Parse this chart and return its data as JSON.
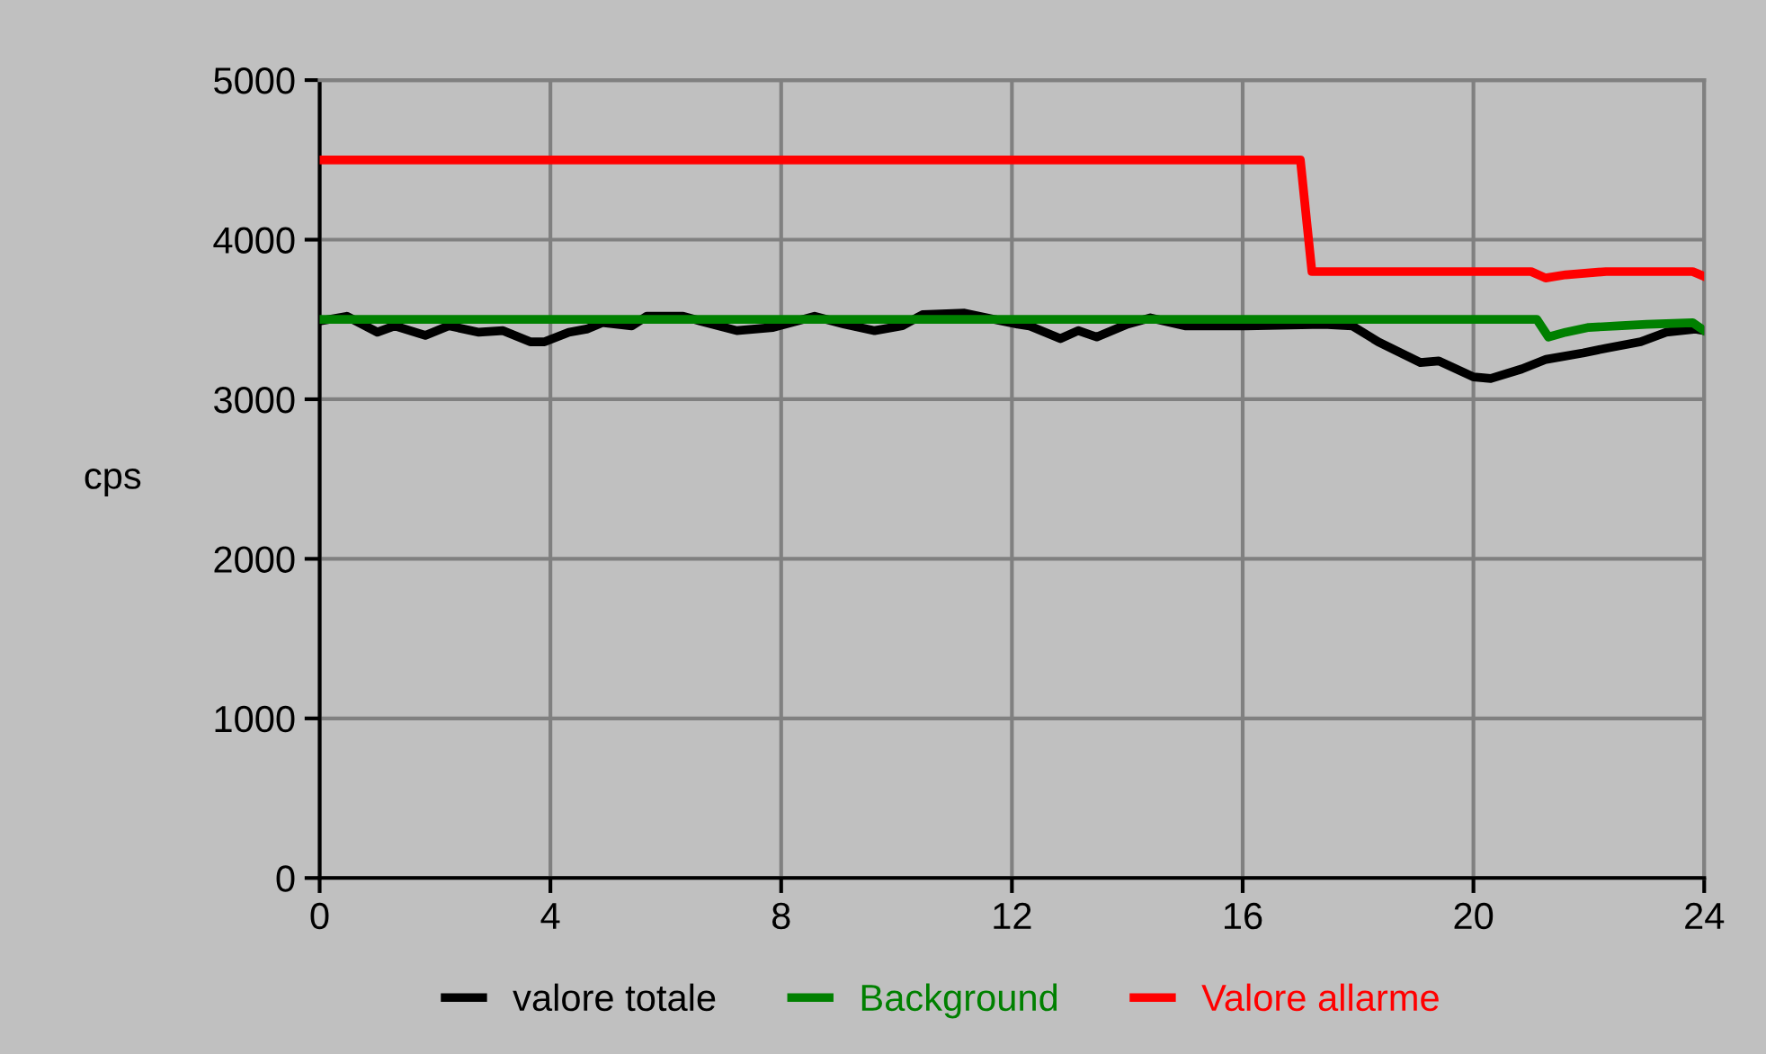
{
  "chart_data": {
    "type": "line",
    "ylabel": "cps",
    "xlim": [
      0,
      24
    ],
    "xticks": [
      0,
      4,
      8,
      12,
      16,
      20,
      24
    ],
    "ylim": [
      0,
      5000
    ],
    "yticks": [
      0,
      1000,
      2000,
      3000,
      4000,
      5000
    ],
    "grid": true,
    "legend": "bottom",
    "marker": "none",
    "line_style": "solid",
    "series": [
      {
        "name": "valore totale",
        "color": "#000000",
        "x": [
          0,
          0.47,
          1.0,
          1.3,
          1.83,
          2.24,
          2.76,
          3.18,
          3.65,
          3.9,
          4.32,
          4.63,
          4.9,
          5.41,
          5.67,
          6.3,
          6.6,
          7.23,
          7.86,
          8.58,
          9.1,
          9.62,
          10.1,
          10.45,
          11.18,
          11.7,
          12.1,
          12.3,
          12.84,
          13.15,
          13.47,
          14.0,
          14.4,
          15.0,
          16.06,
          17.4,
          17.9,
          18.35,
          19.08,
          19.4,
          20.0,
          20.3,
          20.84,
          21.26,
          21.9,
          22.3,
          22.9,
          23.34,
          23.85,
          24
        ],
        "values": [
          3490,
          3520,
          3420,
          3460,
          3400,
          3460,
          3420,
          3430,
          3360,
          3360,
          3420,
          3440,
          3480,
          3460,
          3520,
          3520,
          3490,
          3430,
          3450,
          3520,
          3470,
          3430,
          3460,
          3530,
          3540,
          3500,
          3470,
          3460,
          3380,
          3430,
          3390,
          3470,
          3510,
          3460,
          3460,
          3470,
          3460,
          3360,
          3230,
          3240,
          3140,
          3130,
          3190,
          3250,
          3290,
          3320,
          3360,
          3420,
          3440,
          3430
        ]
      },
      {
        "name": "Background",
        "color": "#008000",
        "x": [
          0,
          21.1,
          21.3,
          21.6,
          22.0,
          22.5,
          23.0,
          23.8,
          24
        ],
        "values": [
          3500,
          3500,
          3390,
          3420,
          3450,
          3460,
          3470,
          3480,
          3430
        ]
      },
      {
        "name": "Valore allarme",
        "color": "#ff0000",
        "x": [
          0,
          17.0,
          17.2,
          21.0,
          21.25,
          21.6,
          22.3,
          23.8,
          24
        ],
        "values": [
          4500,
          4500,
          3800,
          3800,
          3760,
          3780,
          3800,
          3800,
          3770
        ]
      }
    ]
  }
}
